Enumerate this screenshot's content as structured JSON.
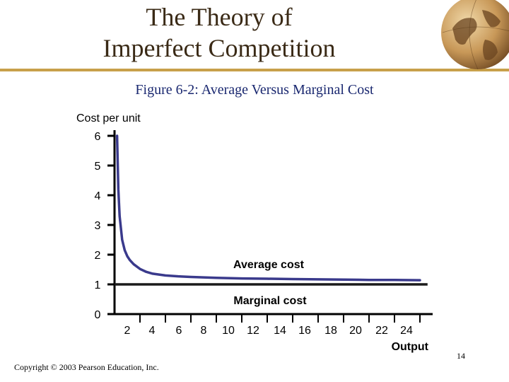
{
  "slide": {
    "title_line1": "The Theory of",
    "title_line2": "Imperfect Competition",
    "figure_label": "Figure 6-2",
    "figure_title": ": Average Versus Marginal Cost",
    "copyright": "Copyright © 2003 Pearson Education, Inc.",
    "page_number": "14"
  },
  "chart_data": {
    "type": "line",
    "ylabel": "Cost per unit",
    "xlabel": "Output",
    "x_ticks": [
      2,
      4,
      6,
      8,
      10,
      12,
      14,
      16,
      18,
      20,
      22,
      24
    ],
    "y_ticks": [
      0,
      1,
      2,
      3,
      4,
      5,
      6
    ],
    "xlim": [
      0,
      25
    ],
    "ylim": [
      0,
      6
    ],
    "grid": false,
    "series": [
      {
        "name": "Average cost",
        "x": [
          0.2,
          0.3,
          0.4,
          0.6,
          0.8,
          1.0,
          1.2,
          1.5,
          2,
          2.5,
          3,
          4,
          5,
          6,
          8,
          10,
          12,
          14,
          16,
          18,
          20,
          22,
          24
        ],
        "y": [
          6.0,
          4.2,
          3.3,
          2.5,
          2.15,
          1.95,
          1.82,
          1.68,
          1.52,
          1.42,
          1.36,
          1.3,
          1.27,
          1.25,
          1.22,
          1.2,
          1.19,
          1.18,
          1.17,
          1.16,
          1.15,
          1.15,
          1.14
        ]
      },
      {
        "name": "Marginal cost",
        "x": [
          0,
          24.6
        ],
        "y": [
          1,
          1
        ]
      }
    ],
    "colors": {
      "average_cost": "#3a3a8c",
      "marginal_cost": "#1a1a1a",
      "axes": "#000000"
    }
  }
}
